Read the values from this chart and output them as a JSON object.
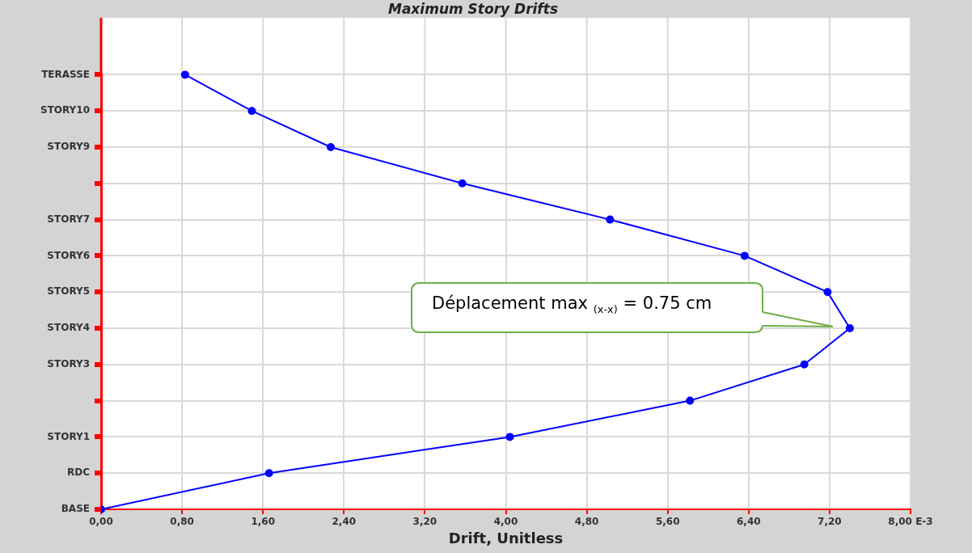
{
  "chart_data": {
    "type": "line",
    "title": "Maximum Story Drifts",
    "xlabel": "Drift, Unitless",
    "orientation": "horizontal",
    "categories": [
      "TERASSE",
      "STORY10",
      "STORY9",
      null,
      "STORY7",
      "STORY6",
      "STORY5",
      "STORY4",
      "STORY3",
      null,
      "STORY1",
      "RDC",
      "BASE"
    ],
    "series": [
      {
        "color": "#0000ff",
        "values": [
          0.83,
          1.49,
          2.27,
          3.57,
          5.03,
          6.36,
          7.18,
          7.4,
          6.95,
          5.82,
          4.04,
          1.66,
          0
        ]
      }
    ],
    "xlim": [
      0,
      8
    ],
    "xticks": [
      {
        "value": 0,
        "label": "0,00"
      },
      {
        "value": 0.8,
        "label": "0,80"
      },
      {
        "value": 1.6,
        "label": "1,60"
      },
      {
        "value": 2.4,
        "label": "2,40"
      },
      {
        "value": 3.2,
        "label": "3,20"
      },
      {
        "value": 4,
        "label": "4,00"
      },
      {
        "value": 4.8,
        "label": "4,80"
      },
      {
        "value": 5.6,
        "label": "5,60"
      },
      {
        "value": 6.4,
        "label": "6,40"
      },
      {
        "value": 7.2,
        "label": "7,20"
      },
      {
        "value": 8,
        "label": "8,00 E-3"
      }
    ],
    "annotations": [
      "Déplacement max $_{(x-x)}$ = 0.75 cm"
    ],
    "grid": true,
    "legend": false,
    "marker": "circle",
    "line_style": "solid"
  }
}
